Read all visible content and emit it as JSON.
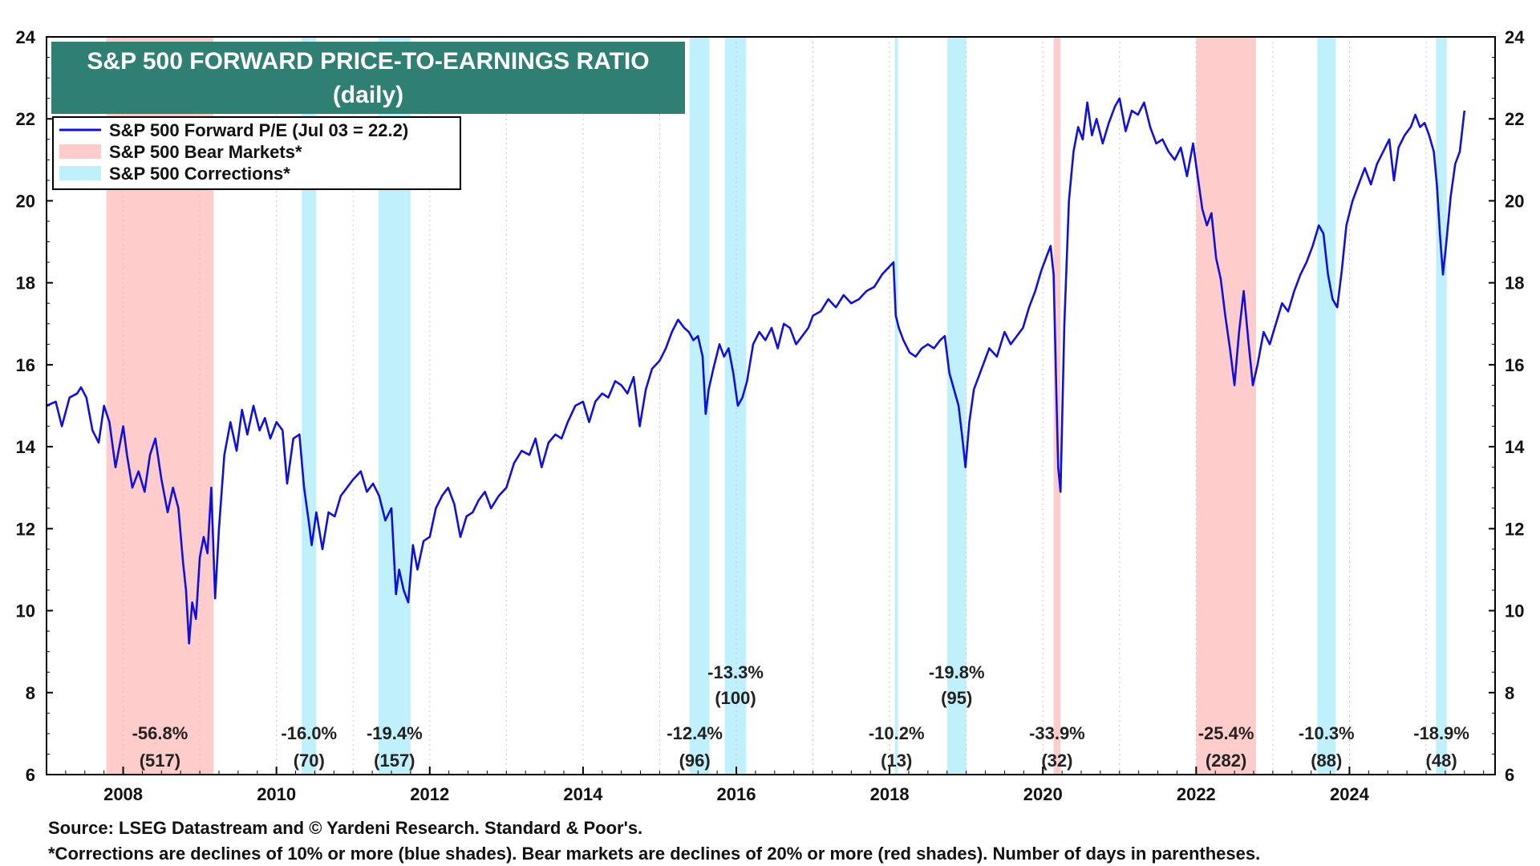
{
  "chart_data": {
    "type": "line",
    "title": "S&P 500 FORWARD PRICE-TO-EARNINGS RATIO",
    "subtitle": "(daily)",
    "ylim": [
      6,
      24
    ],
    "xlim": [
      2007.0,
      2025.9
    ],
    "yticks": [
      6,
      8,
      10,
      12,
      14,
      16,
      18,
      20,
      22,
      24
    ],
    "xticks": [
      2008,
      2010,
      2012,
      2014,
      2016,
      2018,
      2020,
      2022,
      2024
    ],
    "legend": [
      {
        "label": "S&P 500 Forward P/E (Jul 03 = 22.2)",
        "kind": "line",
        "color": "#1010dd"
      },
      {
        "label": "S&P 500 Bear Markets*",
        "kind": "swatch",
        "color": "#ffcccc"
      },
      {
        "label": "S&P 500 Corrections*",
        "kind": "swatch",
        "color": "#bff0fb"
      }
    ],
    "shades": [
      {
        "type": "bear",
        "start": 2007.78,
        "end": 2009.18,
        "pct": "-56.8%",
        "days": "(517)"
      },
      {
        "type": "correction",
        "start": 2010.33,
        "end": 2010.52,
        "pct": "-16.0%",
        "days": "(70)"
      },
      {
        "type": "correction",
        "start": 2011.33,
        "end": 2011.75,
        "pct": "-19.4%",
        "days": "(157)"
      },
      {
        "type": "correction",
        "start": 2015.39,
        "end": 2015.65,
        "pct": "-12.4%",
        "days": "(96)"
      },
      {
        "type": "correction",
        "start": 2015.85,
        "end": 2016.13,
        "pct": "-13.3%",
        "days": "(100)"
      },
      {
        "type": "correction",
        "start": 2018.07,
        "end": 2018.11,
        "pct": "-10.2%",
        "days": "(13)"
      },
      {
        "type": "correction",
        "start": 2018.75,
        "end": 2019.0,
        "pct": "-19.8%",
        "days": "(95)"
      },
      {
        "type": "bear",
        "start": 2020.14,
        "end": 2020.23,
        "pct": "-33.9%",
        "days": "(32)"
      },
      {
        "type": "bear",
        "start": 2022.0,
        "end": 2022.78,
        "pct": "-25.4%",
        "days": "(282)"
      },
      {
        "type": "correction",
        "start": 2023.58,
        "end": 2023.82,
        "pct": "-10.3%",
        "days": "(88)"
      },
      {
        "type": "correction",
        "start": 2025.13,
        "end": 2025.27,
        "pct": "-18.9%",
        "days": "(48)"
      }
    ],
    "series": [
      {
        "name": "S&P 500 Forward P/E",
        "color": "#1010dd",
        "points": [
          [
            2007.0,
            15.0
          ],
          [
            2007.12,
            15.1
          ],
          [
            2007.2,
            14.5
          ],
          [
            2007.3,
            15.2
          ],
          [
            2007.4,
            15.3
          ],
          [
            2007.45,
            15.45
          ],
          [
            2007.52,
            15.2
          ],
          [
            2007.6,
            14.4
          ],
          [
            2007.68,
            14.1
          ],
          [
            2007.75,
            15.0
          ],
          [
            2007.82,
            14.6
          ],
          [
            2007.9,
            13.5
          ],
          [
            2008.0,
            14.5
          ],
          [
            2008.05,
            13.8
          ],
          [
            2008.12,
            13.0
          ],
          [
            2008.2,
            13.4
          ],
          [
            2008.28,
            12.9
          ],
          [
            2008.35,
            13.8
          ],
          [
            2008.42,
            14.2
          ],
          [
            2008.5,
            13.2
          ],
          [
            2008.58,
            12.4
          ],
          [
            2008.65,
            13.0
          ],
          [
            2008.72,
            12.5
          ],
          [
            2008.78,
            11.2
          ],
          [
            2008.82,
            10.5
          ],
          [
            2008.86,
            9.2
          ],
          [
            2008.9,
            10.2
          ],
          [
            2008.95,
            9.8
          ],
          [
            2009.0,
            11.3
          ],
          [
            2009.05,
            11.8
          ],
          [
            2009.1,
            11.4
          ],
          [
            2009.15,
            13.0
          ],
          [
            2009.2,
            10.3
          ],
          [
            2009.25,
            12.0
          ],
          [
            2009.32,
            13.8
          ],
          [
            2009.4,
            14.6
          ],
          [
            2009.48,
            13.9
          ],
          [
            2009.55,
            14.9
          ],
          [
            2009.62,
            14.3
          ],
          [
            2009.7,
            15.0
          ],
          [
            2009.78,
            14.4
          ],
          [
            2009.85,
            14.7
          ],
          [
            2009.92,
            14.2
          ],
          [
            2010.0,
            14.6
          ],
          [
            2010.08,
            14.4
          ],
          [
            2010.14,
            13.1
          ],
          [
            2010.22,
            14.2
          ],
          [
            2010.3,
            14.3
          ],
          [
            2010.36,
            13.0
          ],
          [
            2010.42,
            12.2
          ],
          [
            2010.46,
            11.6
          ],
          [
            2010.52,
            12.4
          ],
          [
            2010.6,
            11.5
          ],
          [
            2010.68,
            12.4
          ],
          [
            2010.76,
            12.3
          ],
          [
            2010.84,
            12.8
          ],
          [
            2010.92,
            13.0
          ],
          [
            2011.0,
            13.2
          ],
          [
            2011.1,
            13.4
          ],
          [
            2011.18,
            12.9
          ],
          [
            2011.26,
            13.1
          ],
          [
            2011.34,
            12.8
          ],
          [
            2011.42,
            12.2
          ],
          [
            2011.5,
            12.5
          ],
          [
            2011.56,
            10.4
          ],
          [
            2011.6,
            11.0
          ],
          [
            2011.66,
            10.5
          ],
          [
            2011.72,
            10.2
          ],
          [
            2011.78,
            11.6
          ],
          [
            2011.84,
            11.0
          ],
          [
            2011.92,
            11.7
          ],
          [
            2012.0,
            11.8
          ],
          [
            2012.08,
            12.5
          ],
          [
            2012.16,
            12.8
          ],
          [
            2012.24,
            13.0
          ],
          [
            2012.32,
            12.6
          ],
          [
            2012.4,
            11.8
          ],
          [
            2012.48,
            12.3
          ],
          [
            2012.56,
            12.4
          ],
          [
            2012.64,
            12.7
          ],
          [
            2012.72,
            12.9
          ],
          [
            2012.8,
            12.5
          ],
          [
            2012.9,
            12.8
          ],
          [
            2013.0,
            13.0
          ],
          [
            2013.1,
            13.6
          ],
          [
            2013.2,
            13.9
          ],
          [
            2013.3,
            13.8
          ],
          [
            2013.38,
            14.2
          ],
          [
            2013.46,
            13.5
          ],
          [
            2013.55,
            14.1
          ],
          [
            2013.64,
            14.3
          ],
          [
            2013.72,
            14.2
          ],
          [
            2013.8,
            14.6
          ],
          [
            2013.9,
            15.0
          ],
          [
            2014.0,
            15.1
          ],
          [
            2014.08,
            14.6
          ],
          [
            2014.16,
            15.1
          ],
          [
            2014.25,
            15.3
          ],
          [
            2014.33,
            15.2
          ],
          [
            2014.42,
            15.6
          ],
          [
            2014.5,
            15.5
          ],
          [
            2014.58,
            15.3
          ],
          [
            2014.66,
            15.7
          ],
          [
            2014.74,
            14.5
          ],
          [
            2014.82,
            15.4
          ],
          [
            2014.9,
            15.9
          ],
          [
            2015.0,
            16.1
          ],
          [
            2015.08,
            16.4
          ],
          [
            2015.16,
            16.8
          ],
          [
            2015.24,
            17.1
          ],
          [
            2015.32,
            16.9
          ],
          [
            2015.38,
            16.8
          ],
          [
            2015.44,
            16.6
          ],
          [
            2015.5,
            16.7
          ],
          [
            2015.56,
            16.2
          ],
          [
            2015.6,
            14.8
          ],
          [
            2015.64,
            15.4
          ],
          [
            2015.7,
            15.9
          ],
          [
            2015.78,
            16.5
          ],
          [
            2015.84,
            16.2
          ],
          [
            2015.9,
            16.4
          ],
          [
            2015.96,
            15.8
          ],
          [
            2016.02,
            15.0
          ],
          [
            2016.08,
            15.2
          ],
          [
            2016.14,
            15.6
          ],
          [
            2016.22,
            16.5
          ],
          [
            2016.3,
            16.8
          ],
          [
            2016.38,
            16.6
          ],
          [
            2016.46,
            16.9
          ],
          [
            2016.54,
            16.4
          ],
          [
            2016.62,
            17.0
          ],
          [
            2016.7,
            16.9
          ],
          [
            2016.78,
            16.5
          ],
          [
            2016.86,
            16.7
          ],
          [
            2016.94,
            16.9
          ],
          [
            2017.0,
            17.2
          ],
          [
            2017.1,
            17.3
          ],
          [
            2017.2,
            17.6
          ],
          [
            2017.3,
            17.4
          ],
          [
            2017.4,
            17.7
          ],
          [
            2017.5,
            17.5
          ],
          [
            2017.6,
            17.6
          ],
          [
            2017.7,
            17.8
          ],
          [
            2017.8,
            17.9
          ],
          [
            2017.9,
            18.2
          ],
          [
            2018.0,
            18.4
          ],
          [
            2018.05,
            18.5
          ],
          [
            2018.08,
            17.2
          ],
          [
            2018.12,
            16.9
          ],
          [
            2018.18,
            16.6
          ],
          [
            2018.26,
            16.3
          ],
          [
            2018.34,
            16.2
          ],
          [
            2018.42,
            16.4
          ],
          [
            2018.5,
            16.5
          ],
          [
            2018.58,
            16.4
          ],
          [
            2018.66,
            16.6
          ],
          [
            2018.72,
            16.7
          ],
          [
            2018.78,
            15.8
          ],
          [
            2018.84,
            15.4
          ],
          [
            2018.9,
            15.0
          ],
          [
            2018.95,
            14.2
          ],
          [
            2018.99,
            13.5
          ],
          [
            2019.04,
            14.6
          ],
          [
            2019.1,
            15.4
          ],
          [
            2019.2,
            15.9
          ],
          [
            2019.3,
            16.4
          ],
          [
            2019.4,
            16.2
          ],
          [
            2019.5,
            16.8
          ],
          [
            2019.58,
            16.5
          ],
          [
            2019.66,
            16.7
          ],
          [
            2019.74,
            16.9
          ],
          [
            2019.82,
            17.4
          ],
          [
            2019.9,
            17.8
          ],
          [
            2019.98,
            18.3
          ],
          [
            2020.04,
            18.6
          ],
          [
            2020.1,
            18.9
          ],
          [
            2020.14,
            18.2
          ],
          [
            2020.18,
            15.0
          ],
          [
            2020.2,
            13.5
          ],
          [
            2020.23,
            12.9
          ],
          [
            2020.28,
            17.0
          ],
          [
            2020.34,
            20.0
          ],
          [
            2020.4,
            21.2
          ],
          [
            2020.46,
            21.8
          ],
          [
            2020.52,
            21.5
          ],
          [
            2020.58,
            22.4
          ],
          [
            2020.64,
            21.6
          ],
          [
            2020.7,
            22.0
          ],
          [
            2020.78,
            21.4
          ],
          [
            2020.86,
            21.9
          ],
          [
            2020.94,
            22.3
          ],
          [
            2021.0,
            22.5
          ],
          [
            2021.08,
            21.7
          ],
          [
            2021.16,
            22.2
          ],
          [
            2021.24,
            22.1
          ],
          [
            2021.32,
            22.4
          ],
          [
            2021.4,
            21.8
          ],
          [
            2021.48,
            21.4
          ],
          [
            2021.56,
            21.5
          ],
          [
            2021.64,
            21.2
          ],
          [
            2021.72,
            21.0
          ],
          [
            2021.8,
            21.3
          ],
          [
            2021.88,
            20.6
          ],
          [
            2021.96,
            21.4
          ],
          [
            2022.02,
            20.6
          ],
          [
            2022.08,
            19.8
          ],
          [
            2022.14,
            19.4
          ],
          [
            2022.2,
            19.7
          ],
          [
            2022.26,
            18.6
          ],
          [
            2022.32,
            18.1
          ],
          [
            2022.38,
            17.2
          ],
          [
            2022.44,
            16.4
          ],
          [
            2022.5,
            15.5
          ],
          [
            2022.56,
            16.8
          ],
          [
            2022.62,
            17.8
          ],
          [
            2022.68,
            16.6
          ],
          [
            2022.74,
            15.5
          ],
          [
            2022.8,
            16.0
          ],
          [
            2022.88,
            16.8
          ],
          [
            2022.96,
            16.5
          ],
          [
            2023.04,
            17.0
          ],
          [
            2023.12,
            17.5
          ],
          [
            2023.2,
            17.3
          ],
          [
            2023.28,
            17.8
          ],
          [
            2023.36,
            18.2
          ],
          [
            2023.44,
            18.5
          ],
          [
            2023.52,
            18.9
          ],
          [
            2023.6,
            19.4
          ],
          [
            2023.66,
            19.2
          ],
          [
            2023.72,
            18.2
          ],
          [
            2023.78,
            17.6
          ],
          [
            2023.84,
            17.4
          ],
          [
            2023.9,
            18.3
          ],
          [
            2023.96,
            19.4
          ],
          [
            2024.04,
            20.0
          ],
          [
            2024.12,
            20.4
          ],
          [
            2024.2,
            20.8
          ],
          [
            2024.28,
            20.4
          ],
          [
            2024.36,
            20.9
          ],
          [
            2024.44,
            21.2
          ],
          [
            2024.52,
            21.5
          ],
          [
            2024.58,
            20.5
          ],
          [
            2024.64,
            21.3
          ],
          [
            2024.72,
            21.6
          ],
          [
            2024.8,
            21.8
          ],
          [
            2024.86,
            22.1
          ],
          [
            2024.92,
            21.8
          ],
          [
            2024.98,
            21.9
          ],
          [
            2025.04,
            21.6
          ],
          [
            2025.1,
            21.2
          ],
          [
            2025.14,
            20.4
          ],
          [
            2025.18,
            19.2
          ],
          [
            2025.22,
            18.2
          ],
          [
            2025.26,
            18.9
          ],
          [
            2025.32,
            20.1
          ],
          [
            2025.38,
            20.9
          ],
          [
            2025.44,
            21.2
          ],
          [
            2025.5,
            22.2
          ]
        ]
      }
    ]
  },
  "footer": {
    "source": "Source: LSEG Datastream and © Yardeni Research. Standard & Poor's.",
    "note": "*Corrections are declines of 10% or more (blue shades). Bear markets are declines of 20% or more (red shades). Number of days in parentheses."
  },
  "colors": {
    "bear": "#ffcccc",
    "correction": "#bff0fb",
    "title_bg": "#2f7f72",
    "line": "#1010dd"
  }
}
